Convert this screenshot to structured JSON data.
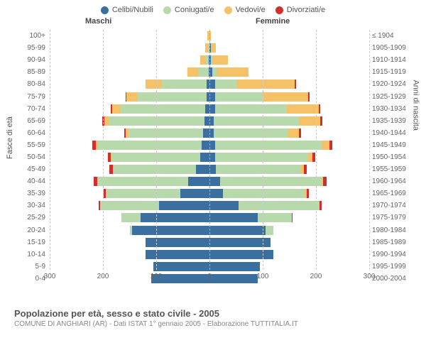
{
  "legend": {
    "items": [
      {
        "label": "Celibi/Nubili",
        "color": "#3a6fa0"
      },
      {
        "label": "Coniugati/e",
        "color": "#b7d9ac"
      },
      {
        "label": "Vedovi/e",
        "color": "#f6c267"
      },
      {
        "label": "Divorziati/e",
        "color": "#d22e2e"
      }
    ]
  },
  "headers": {
    "male": "Maschi",
    "female": "Femmine"
  },
  "axis": {
    "left": "Fasce di età",
    "right": "Anni di nascita"
  },
  "x_ticks": [
    -300,
    -200,
    -100,
    0,
    100,
    200,
    300
  ],
  "x_max": 300,
  "colors": {
    "celibi": "#3a6fa0",
    "coniugati": "#b7d9ac",
    "vedovi": "#f6c267",
    "divorziati": "#d22e2e",
    "grid": "#cccccc",
    "text": "#666666"
  },
  "footer": {
    "title": "Popolazione per età, sesso e stato civile - 2005",
    "sub": "COMUNE DI ANGHIARI (AR) - Dati ISTAT 1° gennaio 2005 - Elaborazione TUTTITALIA.IT"
  },
  "rows": [
    {
      "age": "100+",
      "birth": "≤ 1904",
      "m": {
        "c": 0,
        "co": 0,
        "v": 4,
        "d": 0
      },
      "f": {
        "c": 0,
        "co": 0,
        "v": 3,
        "d": 0
      }
    },
    {
      "age": "95-99",
      "birth": "1905-1909",
      "m": {
        "c": 0,
        "co": 2,
        "v": 6,
        "d": 0
      },
      "f": {
        "c": 2,
        "co": 0,
        "v": 10,
        "d": 0
      }
    },
    {
      "age": "90-94",
      "birth": "1910-1914",
      "m": {
        "c": 1,
        "co": 6,
        "v": 10,
        "d": 0
      },
      "f": {
        "c": 2,
        "co": 3,
        "v": 30,
        "d": 0
      }
    },
    {
      "age": "85-89",
      "birth": "1915-1919",
      "m": {
        "c": 2,
        "co": 20,
        "v": 20,
        "d": 0
      },
      "f": {
        "c": 5,
        "co": 8,
        "v": 60,
        "d": 0
      }
    },
    {
      "age": "80-84",
      "birth": "1920-1924",
      "m": {
        "c": 5,
        "co": 85,
        "v": 30,
        "d": 0
      },
      "f": {
        "c": 10,
        "co": 40,
        "v": 110,
        "d": 2
      }
    },
    {
      "age": "75-79",
      "birth": "1925-1929",
      "m": {
        "c": 6,
        "co": 130,
        "v": 20,
        "d": 2
      },
      "f": {
        "c": 10,
        "co": 90,
        "v": 85,
        "d": 3
      }
    },
    {
      "age": "70-74",
      "birth": "1930-1934",
      "m": {
        "c": 8,
        "co": 160,
        "v": 15,
        "d": 3
      },
      "f": {
        "c": 10,
        "co": 135,
        "v": 60,
        "d": 3
      }
    },
    {
      "age": "65-69",
      "birth": "1935-1939",
      "m": {
        "c": 10,
        "co": 180,
        "v": 8,
        "d": 3
      },
      "f": {
        "c": 8,
        "co": 160,
        "v": 40,
        "d": 4
      }
    },
    {
      "age": "60-64",
      "birth": "1940-1944",
      "m": {
        "c": 12,
        "co": 140,
        "v": 5,
        "d": 3
      },
      "f": {
        "c": 8,
        "co": 140,
        "v": 20,
        "d": 4
      }
    },
    {
      "age": "55-59",
      "birth": "1945-1949",
      "m": {
        "c": 15,
        "co": 195,
        "v": 4,
        "d": 6
      },
      "f": {
        "c": 10,
        "co": 200,
        "v": 15,
        "d": 6
      }
    },
    {
      "age": "50-54",
      "birth": "1950-1954",
      "m": {
        "c": 18,
        "co": 165,
        "v": 3,
        "d": 5
      },
      "f": {
        "c": 10,
        "co": 175,
        "v": 8,
        "d": 5
      }
    },
    {
      "age": "45-49",
      "birth": "1955-1959",
      "m": {
        "c": 25,
        "co": 155,
        "v": 2,
        "d": 6
      },
      "f": {
        "c": 12,
        "co": 160,
        "v": 5,
        "d": 6
      }
    },
    {
      "age": "40-44",
      "birth": "1960-1964",
      "m": {
        "c": 40,
        "co": 170,
        "v": 1,
        "d": 6
      },
      "f": {
        "c": 20,
        "co": 190,
        "v": 3,
        "d": 7
      }
    },
    {
      "age": "35-39",
      "birth": "1965-1969",
      "m": {
        "c": 55,
        "co": 140,
        "v": 0,
        "d": 4
      },
      "f": {
        "c": 25,
        "co": 155,
        "v": 2,
        "d": 5
      }
    },
    {
      "age": "30-34",
      "birth": "1970-1974",
      "m": {
        "c": 95,
        "co": 110,
        "v": 0,
        "d": 3
      },
      "f": {
        "c": 55,
        "co": 150,
        "v": 1,
        "d": 5
      }
    },
    {
      "age": "25-29",
      "birth": "1975-1979",
      "m": {
        "c": 130,
        "co": 35,
        "v": 0,
        "d": 1
      },
      "f": {
        "c": 90,
        "co": 65,
        "v": 0,
        "d": 1
      }
    },
    {
      "age": "20-24",
      "birth": "1980-1984",
      "m": {
        "c": 145,
        "co": 5,
        "v": 0,
        "d": 0
      },
      "f": {
        "c": 105,
        "co": 15,
        "v": 0,
        "d": 0
      }
    },
    {
      "age": "15-19",
      "birth": "1985-1989",
      "m": {
        "c": 120,
        "co": 0,
        "v": 0,
        "d": 0
      },
      "f": {
        "c": 115,
        "co": 0,
        "v": 0,
        "d": 0
      }
    },
    {
      "age": "10-14",
      "birth": "1990-1994",
      "m": {
        "c": 120,
        "co": 0,
        "v": 0,
        "d": 0
      },
      "f": {
        "c": 120,
        "co": 0,
        "v": 0,
        "d": 0
      }
    },
    {
      "age": "5-9",
      "birth": "1995-1999",
      "m": {
        "c": 105,
        "co": 0,
        "v": 0,
        "d": 0
      },
      "f": {
        "c": 95,
        "co": 0,
        "v": 0,
        "d": 0
      }
    },
    {
      "age": "0-4",
      "birth": "2000-2004",
      "m": {
        "c": 110,
        "co": 0,
        "v": 0,
        "d": 0
      },
      "f": {
        "c": 90,
        "co": 0,
        "v": 0,
        "d": 0
      }
    }
  ]
}
